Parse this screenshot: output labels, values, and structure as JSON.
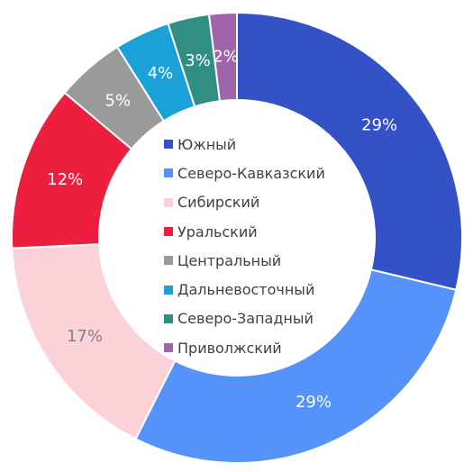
{
  "chart_data": {
    "type": "pie",
    "variant": "donut",
    "legend_position": "center",
    "categories": [
      "Южный",
      "Северо-Кавказский",
      "Сибирский",
      "Уральский",
      "Центральный",
      "Дальневосточный",
      "Северо-Западный",
      "Приволжский"
    ],
    "values": [
      29,
      29,
      17,
      12,
      5,
      4,
      3,
      2
    ],
    "labels": [
      "29%",
      "29%",
      "17%",
      "12%",
      "5%",
      "4%",
      "3%",
      "2%"
    ],
    "colors": [
      "#3451c6",
      "#5592f9",
      "#fbd2d8",
      "#ee1e3e",
      "#9a9a9a",
      "#1aa2d8",
      "#308e85",
      "#a064aa"
    ],
    "label_colors": [
      "#ffffff",
      "#ffffff",
      "#7f7f7f",
      "#ffffff",
      "#ffffff",
      "#ffffff",
      "#ffffff",
      "#ffffff"
    ]
  }
}
